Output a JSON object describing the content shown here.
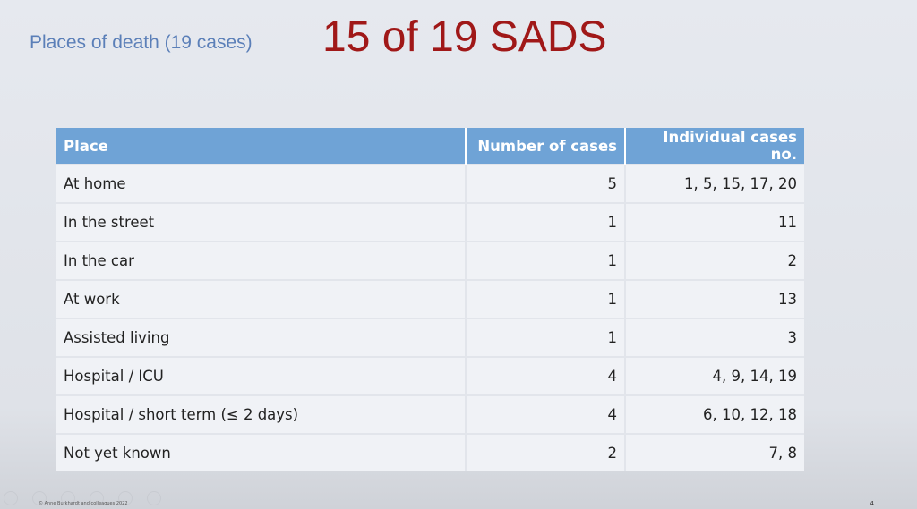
{
  "slide": {
    "subtitle": "Places of death (19 cases)",
    "title": "15 of 19 SADS",
    "footer": "© Anne Burkhardt and colleagues 2022",
    "page_number": "4"
  },
  "table": {
    "headers": [
      "Place",
      "Number of cases",
      "Individual cases no."
    ],
    "rows": [
      [
        "At home",
        "5",
        "1, 5, 15, 17, 20"
      ],
      [
        "In the street",
        "1",
        "11"
      ],
      [
        "In the car",
        "1",
        "2"
      ],
      [
        "At work",
        "1",
        "13"
      ],
      [
        "Assisted living",
        "1",
        "3"
      ],
      [
        "Hospital / ICU",
        "4",
        "4, 9, 14, 19"
      ],
      [
        "Hospital / short term (≤ 2 days)",
        "4",
        "6, 10, 12, 18"
      ],
      [
        "Not yet known",
        "2",
        "7, 8"
      ]
    ]
  },
  "colors": {
    "header": "#6fa3d6",
    "title": "#a01818",
    "subtitle": "#5b7fb8"
  }
}
